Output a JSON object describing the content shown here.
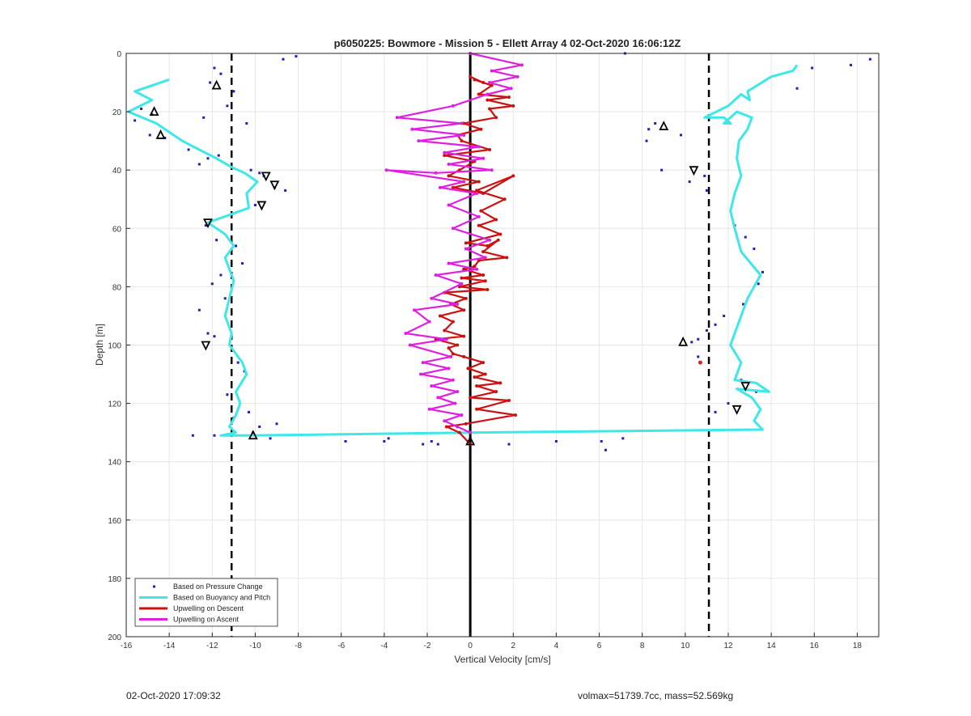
{
  "chart_data": {
    "type": "line",
    "title": "p6050225: Bowmore - Mission 5 - Ellett Array 4 02-Oct-2020 16:06:12Z",
    "xlabel": "Vertical Velocity [cm/s]",
    "ylabel": "Depth [m]",
    "xlim": [
      -16,
      19
    ],
    "ylim": [
      0,
      200
    ],
    "y_reversed": true,
    "grid": true,
    "xticks": [
      -16,
      -14,
      -12,
      -10,
      -8,
      -6,
      -4,
      -2,
      0,
      2,
      4,
      6,
      8,
      10,
      12,
      14,
      16,
      18
    ],
    "yticks": [
      0,
      20,
      40,
      60,
      80,
      100,
      120,
      140,
      160,
      180,
      200
    ],
    "reference_lines": {
      "zero": 0,
      "dashed": [
        -11.1,
        11.1
      ]
    },
    "legend_position": "bottom-left",
    "series": [
      {
        "name": "Based on Pressure Change",
        "style": "dots",
        "color": "#1f1fb4",
        "x": [
          -11.9,
          -11.6,
          -12.1,
          -11.0,
          -12.4,
          -11.3,
          -15.3,
          -14.8,
          -15.6,
          -14.2,
          -14.9,
          -13.1,
          -12.2,
          -11.7,
          -9.6,
          -9.1,
          -8.6,
          -9.8,
          -10.2,
          -10.0,
          -12.3,
          -11.8,
          -10.9,
          -10.6,
          -11.6,
          -12.0,
          -11.4,
          -12.6,
          -12.2,
          -11.9,
          -10.8,
          -10.5,
          -11.3,
          -10.3,
          -9.8,
          -11.9,
          -10.1,
          -9.0,
          -9.3,
          -12.9,
          -11.0,
          -5.8,
          -4.0,
          -3.8,
          -2.2,
          -1.8,
          -1.5,
          1.8,
          4.0,
          6.1,
          6.3,
          7.1,
          8.2,
          9.8,
          8.3,
          8.6,
          8.9,
          10.2,
          11.0,
          10.9,
          12.3,
          12.8,
          13.2,
          13.6,
          13.4,
          12.7,
          11.8,
          11.4,
          11.0,
          10.6,
          10.3,
          10.6,
          12.6,
          13.3,
          12.0,
          11.4,
          15.2,
          15.9,
          17.7,
          18.6,
          7.2,
          -8.1,
          -8.7,
          -10.4,
          -12.6
        ],
        "y": [
          5,
          7,
          10,
          13,
          22,
          18,
          19,
          21,
          23,
          29,
          28,
          33,
          36,
          35,
          42,
          46,
          47,
          41,
          40,
          52,
          59,
          64,
          66,
          72,
          76,
          79,
          84,
          88,
          96,
          97,
          106,
          109,
          117,
          123,
          128,
          131,
          130,
          127,
          132,
          131,
          125,
          133,
          133,
          132,
          134,
          133,
          134,
          134,
          133,
          133,
          136,
          132,
          30,
          28,
          26,
          24,
          40,
          44,
          47,
          42,
          59,
          63,
          67,
          75,
          79,
          86,
          90,
          93,
          95,
          98,
          99,
          104,
          112,
          116,
          120,
          123,
          12,
          5,
          4,
          2,
          0,
          1,
          2,
          24,
          38
        ],
        "legend_label": "Based on Pressure Change"
      },
      {
        "name": "Based on Buoyancy and Pitch",
        "style": "line",
        "color": "#3ee8e8",
        "x": [
          -14.0,
          -15.6,
          -14.8,
          -15.9,
          -14.6,
          -14.0,
          -13.4,
          -12.6,
          -11.8,
          -11.1,
          -10.5,
          -9.9,
          -10.4,
          -10.3,
          -12.2,
          -11.4,
          -11.0,
          -11.4,
          -11.2,
          -11.0,
          -11.2,
          -11.4,
          -11.1,
          -11.2,
          -10.6,
          -10.4,
          -10.9,
          -10.7,
          -10.9,
          -11.2,
          -10.9,
          -11.6,
          -11.2,
          -10.3,
          0.0,
          13.6,
          13.2,
          13.5,
          13.1,
          12.4,
          13.9,
          13.3,
          12.3,
          12.6,
          12.1,
          12.5,
          12.9,
          13.5,
          12.6,
          12.3,
          12.1,
          12.3,
          12.6,
          12.4,
          12.5,
          12.9,
          13.1,
          12.4,
          11.8,
          12.1,
          11.8,
          10.9,
          12.0,
          12.6,
          13.0,
          12.9,
          14.0,
          15.0,
          15.2
        ],
        "y": [
          9,
          13,
          16,
          20,
          24,
          27,
          30,
          33,
          36,
          39,
          41,
          44,
          48,
          53,
          58,
          62,
          66,
          70,
          74,
          78,
          84,
          90,
          96,
          100,
          106,
          110,
          116,
          120,
          124,
          128,
          130,
          131,
          131,
          131,
          130,
          129,
          126,
          122,
          118,
          115,
          116,
          113,
          112,
          106,
          100,
          92,
          84,
          76,
          68,
          60,
          54,
          48,
          42,
          36,
          30,
          26,
          22,
          20,
          24,
          24,
          22,
          22,
          18,
          14,
          16,
          13,
          8,
          6,
          4
        ],
        "legend_label": "Based on Buoyancy and Pitch"
      },
      {
        "name": "Upwelling on Descent",
        "style": "line-dots",
        "color": "#cc1111",
        "x": [
          0.0,
          0.6,
          0.2,
          1.0,
          0.4,
          1.8,
          0.8,
          2.0,
          0.9,
          1.2,
          -0.3,
          0.5,
          -0.6,
          -0.4,
          0.9,
          -1.2,
          0.2,
          -0.5,
          -1.0,
          0.4,
          -0.8,
          0.6,
          2.0,
          0.3,
          1.6,
          0.5,
          1.2,
          0.4,
          1.4,
          -0.2,
          0.8,
          1.3,
          0.6,
          1.7,
          0.4,
          0.2,
          -0.3,
          0.6,
          -0.4,
          0.7,
          -0.5,
          0.8,
          -1.2,
          -0.2,
          -0.9,
          -0.3,
          -1.4,
          -0.8,
          -1.2,
          -0.3,
          -1.6,
          -0.6,
          -1.0,
          -0.8,
          -0.3,
          0.6,
          -0.1,
          0.7,
          0.2,
          1.4,
          0.3,
          1.2,
          0.0,
          1.8,
          0.3,
          2.1,
          -0.2,
          -1.1,
          -0.5,
          0.0
        ],
        "y": [
          8,
          10,
          9,
          11,
          14,
          15,
          16,
          18,
          19,
          22,
          24,
          26,
          28,
          30,
          33,
          35,
          37,
          40,
          42,
          44,
          46,
          48,
          42,
          47,
          50,
          54,
          57,
          59,
          62,
          65,
          66,
          64,
          68,
          70,
          71,
          73,
          74,
          76,
          77,
          78,
          80,
          81,
          82,
          84,
          86,
          88,
          90,
          92,
          95,
          97,
          98,
          100,
          101,
          103,
          104,
          106,
          108,
          110,
          111,
          113,
          114,
          116,
          118,
          119,
          122,
          124,
          127,
          128,
          130,
          134
        ],
        "legend_label": "Upwelling on Descent"
      },
      {
        "name": "Upwelling on Ascent",
        "style": "line-dots",
        "color": "#e020e0",
        "x": [
          0.0,
          2.4,
          1.0,
          2.2,
          0.9,
          1.9,
          0.8,
          -0.8,
          -3.4,
          -0.4,
          -2.7,
          -0.3,
          -2.4,
          0.4,
          -1.2,
          0.6,
          -1.0,
          1.0,
          -1.6,
          -3.9,
          -0.3,
          -1.4,
          0.3,
          -1.0,
          0.4,
          -0.8,
          0.9,
          -0.2,
          0.7,
          -1.0,
          0.3,
          -1.6,
          -0.4,
          -1.8,
          -0.6,
          -2.6,
          -1.9,
          -3.0,
          -1.1,
          -2.8,
          -0.9,
          -2.2,
          -1.0,
          -2.3,
          -0.8,
          -1.8,
          -0.6,
          -1.5,
          -0.7,
          -1.9,
          -0.4,
          -1.2,
          -0.6,
          0.0
        ],
        "y": [
          0,
          4,
          6,
          8,
          10,
          12,
          14,
          18,
          22,
          24,
          26,
          28,
          30,
          32,
          34,
          36,
          38,
          40,
          41,
          40,
          44,
          46,
          48,
          52,
          56,
          60,
          64,
          67,
          70,
          72,
          74,
          76,
          79,
          84,
          86,
          88,
          92,
          96,
          98,
          100,
          104,
          106,
          108,
          110,
          112,
          114,
          116,
          118,
          120,
          122,
          124,
          126,
          128,
          130
        ],
        "legend_label": "Upwelling on Ascent"
      }
    ],
    "markers_up": {
      "x": [
        -11.8,
        -14.7,
        -14.4,
        -10.1,
        9.0,
        9.9,
        0.0
      ],
      "y": [
        11,
        20,
        28,
        131,
        25,
        99,
        133
      ]
    },
    "markers_down": {
      "x": [
        -9.5,
        -9.1,
        -9.7,
        -12.2,
        -12.3,
        10.4,
        12.8,
        12.4
      ],
      "y": [
        42,
        45,
        52,
        58,
        100,
        40,
        114,
        122
      ]
    },
    "annotation_dot": {
      "x": 10.7,
      "y": 106
    }
  },
  "footer": {
    "left": "02-Oct-2020 17:09:32",
    "right": "volmax=51739.7cc, mass=52.569kg"
  }
}
